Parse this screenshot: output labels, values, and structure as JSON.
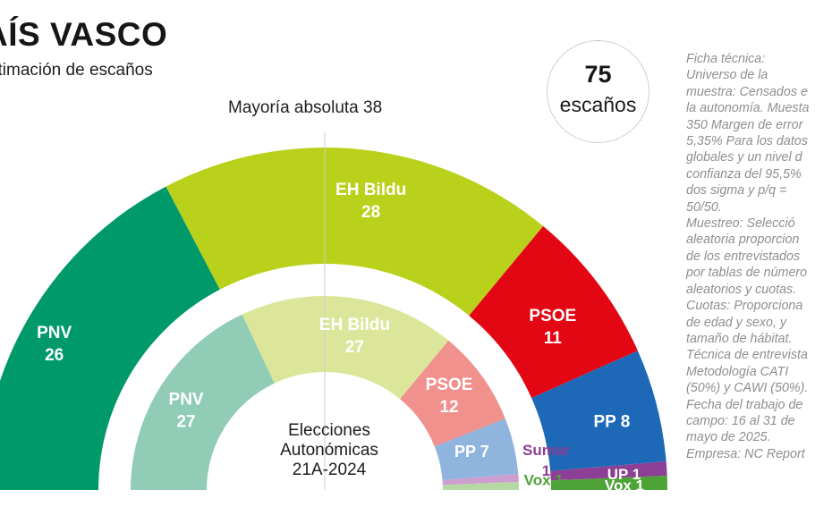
{
  "header": {
    "title": "AÍS VASCO",
    "subtitle": "stimación de escaños"
  },
  "total": {
    "value": "75",
    "label": "escaños"
  },
  "majority_label": "Mayoría absoluta 38",
  "center_label": [
    "Elecciones",
    "Autonómicas",
    "21A-2024"
  ],
  "note": [
    "Ficha técnica:",
    "Universo de la",
    "muestra: Censados e",
    "la autonomía. Muesta",
    "350 Margen de error",
    "5,35% Para los datos",
    "globales y un nivel d",
    "confianza del 95,5%",
    "dos sigma y p/q =",
    "50/50.",
    "Muestreo: Selecció",
    "aleatoria proporcion",
    "de los entrevistados",
    "por tablas de número",
    "aleatorios y cuotas.",
    "Cuotas: Proporciona",
    "de edad y sexo, y",
    "tamaño de hábitat.",
    "Técnica de entrevista",
    "Metodología CATI",
    "(50%) y CAWI (50%).",
    "Fecha del trabajo de",
    "campo: 16 al 31 de",
    "mayo de 2025.",
    "Empresa: NC Report"
  ],
  "chart_data": [
    {
      "type": "pie",
      "variant": "parliament-semicircle",
      "ring": "outer",
      "total_seats": 75,
      "series": [
        {
          "label": "PNV",
          "value": 26,
          "color": "#00996a"
        },
        {
          "label": "EH Bildu",
          "value": 28,
          "color": "#b9d11b"
        },
        {
          "label": "PSOE",
          "value": 11,
          "color": "#e30613"
        },
        {
          "label": "PP",
          "value": 8,
          "color": "#1d69b8",
          "display": "PP 8"
        },
        {
          "label": "UP",
          "value": 1,
          "color": "#8d3f95",
          "display": "UP 1"
        },
        {
          "label": "Vox",
          "value": 1,
          "color": "#4ea337",
          "display": "Vox 1"
        }
      ]
    },
    {
      "type": "pie",
      "variant": "parliament-semicircle",
      "ring": "inner",
      "total_seats": 75,
      "series": [
        {
          "label": "PNV",
          "value": 27,
          "color": "#91ccb6"
        },
        {
          "label": "EH Bildu",
          "value": 27,
          "color": "#dce69a"
        },
        {
          "label": "PSOE",
          "value": 12,
          "color": "#f0918d"
        },
        {
          "label": "PP",
          "value": 7,
          "color": "#8fb5df",
          "display": "PP 7"
        },
        {
          "label": "Sumar",
          "value": 1,
          "color": "#cd9fcf",
          "display": "Sumar 1"
        },
        {
          "label": "Vox",
          "value": 1,
          "color": "#b5d8a4",
          "display": "Vox 1"
        }
      ]
    }
  ],
  "colors": {
    "label_sumar": "#8d3f95",
    "label_vox": "#4ea337"
  }
}
